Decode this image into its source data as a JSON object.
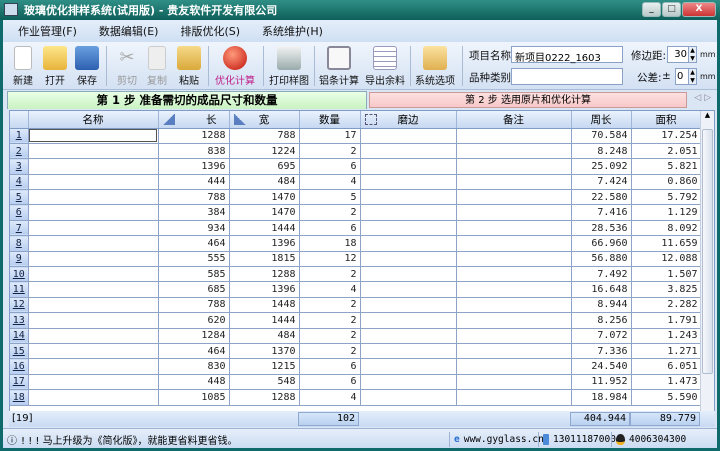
{
  "window": {
    "title": "玻璃优化排样系统(试用版) - 贵友软件开发有限公司",
    "minimize": "_",
    "maximize": "□",
    "close": "X"
  },
  "menu": [
    "作业管理(F)",
    "数据编辑(E)",
    "排版优化(S)",
    "系统维护(H)"
  ],
  "toolbar": {
    "new": "新建",
    "open": "打开",
    "save": "保存",
    "cut": "剪切",
    "copy": "复制",
    "paste": "粘贴",
    "optimize": "优化计算",
    "print": "打印样图",
    "aluminum": "铝条计算",
    "export": "导出余料",
    "options": "系统选项"
  },
  "project": {
    "name_label": "项目名称:",
    "name_value": "新项目0222_1603",
    "type_label": "品种类别:",
    "type_value": "",
    "margin_label": "修边距:",
    "margin_value": "30",
    "margin_unit": "mm",
    "tolerance_label": "公差:",
    "tolerance_sign": "±",
    "tolerance_value": "0",
    "tolerance_unit": "mm"
  },
  "steps": {
    "step1": "第 1 步   准备需切的成品尺寸和数量",
    "step2": "第 2 步    选用原片和优化计算",
    "nav": "◁ ▷"
  },
  "grid": {
    "columns": [
      "名称",
      "长",
      "宽",
      "数量",
      "磨边",
      "备注",
      "周长",
      "面积"
    ],
    "rows": [
      [
        "1",
        "",
        "1288",
        "788",
        "17",
        "",
        "",
        "70.584",
        "17.254"
      ],
      [
        "2",
        "",
        "838",
        "1224",
        "2",
        "",
        "",
        "8.248",
        "2.051"
      ],
      [
        "3",
        "",
        "1396",
        "695",
        "6",
        "",
        "",
        "25.092",
        "5.821"
      ],
      [
        "4",
        "",
        "444",
        "484",
        "4",
        "",
        "",
        "7.424",
        "0.860"
      ],
      [
        "5",
        "",
        "788",
        "1470",
        "5",
        "",
        "",
        "22.580",
        "5.792"
      ],
      [
        "6",
        "",
        "384",
        "1470",
        "2",
        "",
        "",
        "7.416",
        "1.129"
      ],
      [
        "7",
        "",
        "934",
        "1444",
        "6",
        "",
        "",
        "28.536",
        "8.092"
      ],
      [
        "8",
        "",
        "464",
        "1396",
        "18",
        "",
        "",
        "66.960",
        "11.659"
      ],
      [
        "9",
        "",
        "555",
        "1815",
        "12",
        "",
        "",
        "56.880",
        "12.088"
      ],
      [
        "10",
        "",
        "585",
        "1288",
        "2",
        "",
        "",
        "7.492",
        "1.507"
      ],
      [
        "11",
        "",
        "685",
        "1396",
        "4",
        "",
        "",
        "16.648",
        "3.825"
      ],
      [
        "12",
        "",
        "788",
        "1448",
        "2",
        "",
        "",
        "8.944",
        "2.282"
      ],
      [
        "13",
        "",
        "620",
        "1444",
        "2",
        "",
        "",
        "8.256",
        "1.791"
      ],
      [
        "14",
        "",
        "1284",
        "484",
        "2",
        "",
        "",
        "7.072",
        "1.243"
      ],
      [
        "15",
        "",
        "464",
        "1370",
        "2",
        "",
        "",
        "7.336",
        "1.271"
      ],
      [
        "16",
        "",
        "830",
        "1215",
        "6",
        "",
        "",
        "24.540",
        "6.051"
      ],
      [
        "17",
        "",
        "448",
        "548",
        "6",
        "",
        "",
        "11.952",
        "1.473"
      ],
      [
        "18",
        "",
        "1085",
        "1288",
        "4",
        "",
        "",
        "18.984",
        "5.590"
      ]
    ],
    "totals": {
      "count": "[19]",
      "quantity": "102",
      "perimeter": "404.944",
      "area": "89.779"
    }
  },
  "status": {
    "message": "! ! ! 马上升级为《简化版》，就能更省料更省钱。",
    "website": "www.gyglass.cn",
    "phone": "13011187000",
    "qq": "4006304300"
  }
}
